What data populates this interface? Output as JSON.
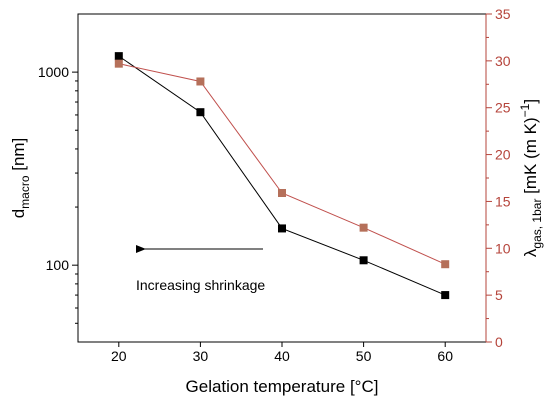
{
  "chart_data": {
    "type": "line",
    "x": [
      20,
      30,
      40,
      50,
      60
    ],
    "xlabel": "Gelation temperature [°C]",
    "xlim": [
      15,
      65
    ],
    "xticks": [
      20,
      30,
      40,
      50,
      60
    ],
    "ylabel_left": {
      "main": "d",
      "sub": "macro",
      "rest": " [nm]"
    },
    "ylabel_right": {
      "main": "λ",
      "sub": "gas, 1bar",
      "rest": " [mK (m K)",
      "sup": "−1",
      "end": "]"
    },
    "y_left": {
      "scale": "log",
      "ylim": [
        40,
        2000
      ],
      "ticks": [
        100,
        1000
      ],
      "tick_labels": [
        "100",
        "1000"
      ]
    },
    "y_right": {
      "scale": "linear",
      "ylim": [
        0,
        35
      ],
      "ticks": [
        0,
        5,
        10,
        15,
        20,
        25,
        30,
        35
      ]
    },
    "series": [
      {
        "axis": "left",
        "color": "#000000",
        "values": [
          1210,
          620,
          155,
          106,
          70
        ]
      },
      {
        "axis": "right",
        "color": "#b5705a",
        "values": [
          29.7,
          27.8,
          15.9,
          12.2,
          8.3
        ]
      }
    ],
    "annotation": {
      "text": "Increasing shrinkage",
      "arrow": "left"
    },
    "right_axis_color": "#b5443b",
    "grid": false
  }
}
